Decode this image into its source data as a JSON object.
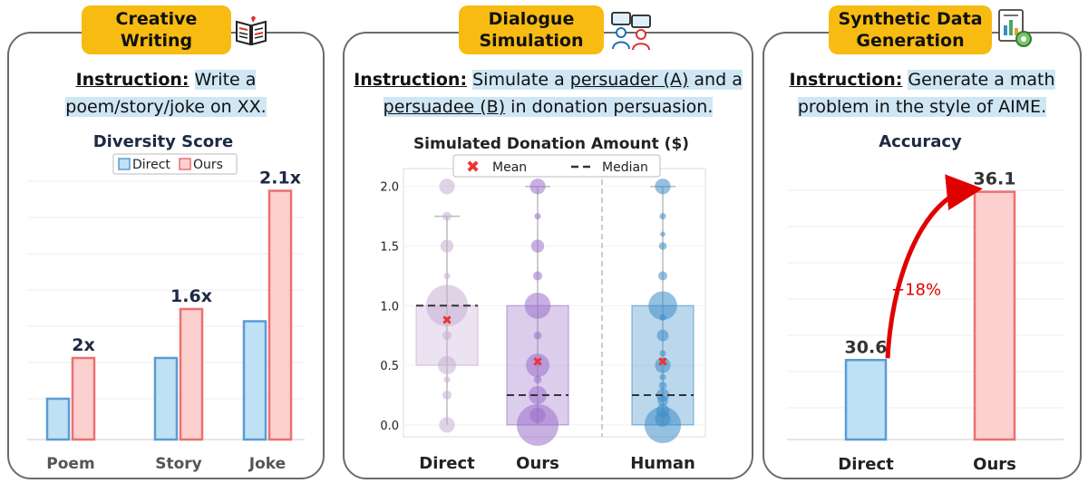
{
  "panels": [
    {
      "tag": [
        "Creative",
        "Writing"
      ],
      "instruction": {
        "label": "Instruction:",
        "lines": [
          "Write a",
          "poem/story/joke on XX."
        ]
      },
      "chart_data": {
        "type": "bar",
        "title": "Diversity Score",
        "categories": [
          "Poem",
          "Story",
          "Joke"
        ],
        "series": [
          {
            "name": "Direct",
            "values": [
              10,
              20,
              29
            ],
            "color": "#bfe1f5",
            "edge": "#5b9bd5"
          },
          {
            "name": "Ours",
            "values": [
              20,
              32,
              61
            ],
            "color": "#fdd0d0",
            "edge": "#ec7070"
          }
        ],
        "annotations": [
          "2x",
          "1.6x",
          "2.1x"
        ],
        "ylim": [
          0,
          66
        ],
        "grid": true,
        "legend": "top-center"
      }
    },
    {
      "tag": [
        "Dialogue",
        "Simulation"
      ],
      "instruction": {
        "label": "Instruction:",
        "line1": {
          "pre": "Simulate a ",
          "link": "persuader (A)",
          "post": " and a"
        },
        "line2": {
          "link": "persuadee (B)",
          "post": " in donation persuasion."
        }
      },
      "chart_data": {
        "type": "box",
        "title": "Simulated Donation Amount ($)",
        "categories": [
          "Direct",
          "Ours",
          "Human"
        ],
        "y_ticks": [
          "0.0",
          "0.5",
          "1.0",
          "1.5",
          "2.0"
        ],
        "ylim": [
          -0.1,
          2.15
        ],
        "legend": {
          "mean": "Mean",
          "median": "Median",
          "position": "top-center"
        },
        "series": [
          {
            "name": "Direct",
            "q1": 0.5,
            "median": 1.0,
            "q3": 1.0,
            "whisker_low": 0.0,
            "whisker_high": 1.75,
            "mean": 0.88,
            "color": "#c6aed6",
            "points": [
              [
                0.0,
                0.12
              ],
              [
                0.25,
                0.07
              ],
              [
                0.38,
                0.05
              ],
              [
                0.5,
                0.14
              ],
              [
                0.75,
                0.07
              ],
              [
                1.0,
                0.32
              ],
              [
                1.25,
                0.05
              ],
              [
                1.5,
                0.1
              ],
              [
                1.75,
                0.07
              ],
              [
                2.0,
                0.12
              ]
            ]
          },
          {
            "name": "Ours",
            "q1": 0.0,
            "median": 0.25,
            "q3": 1.0,
            "whisker_low": 0.0,
            "whisker_high": 2.0,
            "mean": 0.53,
            "color": "#9b6fcb",
            "points": [
              [
                0.0,
                0.32
              ],
              [
                0.08,
                0.12
              ],
              [
                0.25,
                0.14
              ],
              [
                0.38,
                0.06
              ],
              [
                0.5,
                0.18
              ],
              [
                0.75,
                0.06
              ],
              [
                1.0,
                0.2
              ],
              [
                1.25,
                0.07
              ],
              [
                1.5,
                0.1
              ],
              [
                1.75,
                0.05
              ],
              [
                2.0,
                0.12
              ]
            ]
          },
          {
            "name": "Human",
            "q1": 0.0,
            "median": 0.25,
            "q3": 1.0,
            "whisker_low": 0.0,
            "whisker_high": 2.0,
            "mean": 0.53,
            "color": "#3c8cc8",
            "points": [
              [
                0.0,
                0.28
              ],
              [
                0.05,
                0.12
              ],
              [
                0.12,
                0.1
              ],
              [
                0.2,
                0.08
              ],
              [
                0.25,
                0.1
              ],
              [
                0.33,
                0.06
              ],
              [
                0.4,
                0.05
              ],
              [
                0.5,
                0.12
              ],
              [
                0.6,
                0.05
              ],
              [
                0.75,
                0.09
              ],
              [
                0.9,
                0.05
              ],
              [
                1.0,
                0.22
              ],
              [
                1.25,
                0.07
              ],
              [
                1.5,
                0.06
              ],
              [
                1.6,
                0.04
              ],
              [
                1.75,
                0.05
              ],
              [
                2.0,
                0.12
              ]
            ]
          }
        ]
      }
    },
    {
      "tag": [
        "Synthetic Data",
        "Generation"
      ],
      "instruction": {
        "label": "Instruction:",
        "lines": [
          "Generate a math",
          "problem in the style of AIME."
        ]
      },
      "chart_data": {
        "type": "bar",
        "title": "Accuracy",
        "categories": [
          "Direct",
          "Ours"
        ],
        "values": [
          30.6,
          36.1
        ],
        "value_labels": [
          "30.6",
          "36.1"
        ],
        "colors": [
          "#bfe1f5",
          "#fdd0d0"
        ],
        "edges": [
          "#5b9bd5",
          "#ec7070"
        ],
        "ylim": [
          28.0,
          36.8
        ],
        "annotation": "+18%",
        "grid": true
      }
    }
  ]
}
